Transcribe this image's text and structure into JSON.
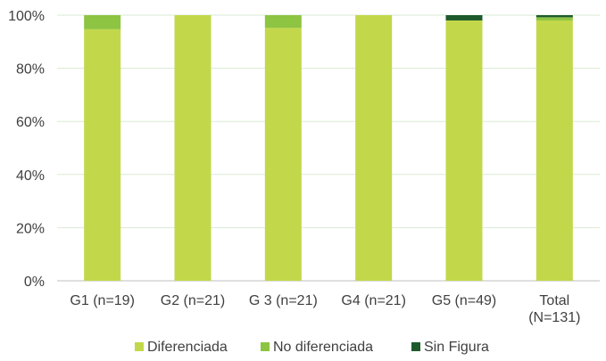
{
  "chart_data": {
    "type": "bar",
    "stacked": true,
    "percent": true,
    "categories": [
      [
        "G1 (n=19)"
      ],
      [
        "G2 (n=21)"
      ],
      [
        "G 3 (n=21)"
      ],
      [
        "G4 (n=21)"
      ],
      [
        "G5 (n=49)"
      ],
      [
        "Total",
        "(N=131)"
      ]
    ],
    "series": [
      {
        "name": "Diferenciada",
        "color": "#c2d84a",
        "values": [
          94.7,
          100,
          95.2,
          100,
          98.0,
          98.0
        ]
      },
      {
        "name": "No diferenciada",
        "color": "#8dc441",
        "values": [
          5.3,
          0,
          4.8,
          0,
          0,
          1.2
        ]
      },
      {
        "name": "Sin Figura",
        "color": "#1e5a2c",
        "values": [
          0,
          0,
          0,
          0,
          2.0,
          0.8
        ]
      }
    ],
    "ylim": [
      0,
      100
    ],
    "yticks": [
      "0%",
      "20%",
      "40%",
      "60%",
      "80%",
      "100%"
    ],
    "grid": true,
    "legend_position": "bottom"
  }
}
